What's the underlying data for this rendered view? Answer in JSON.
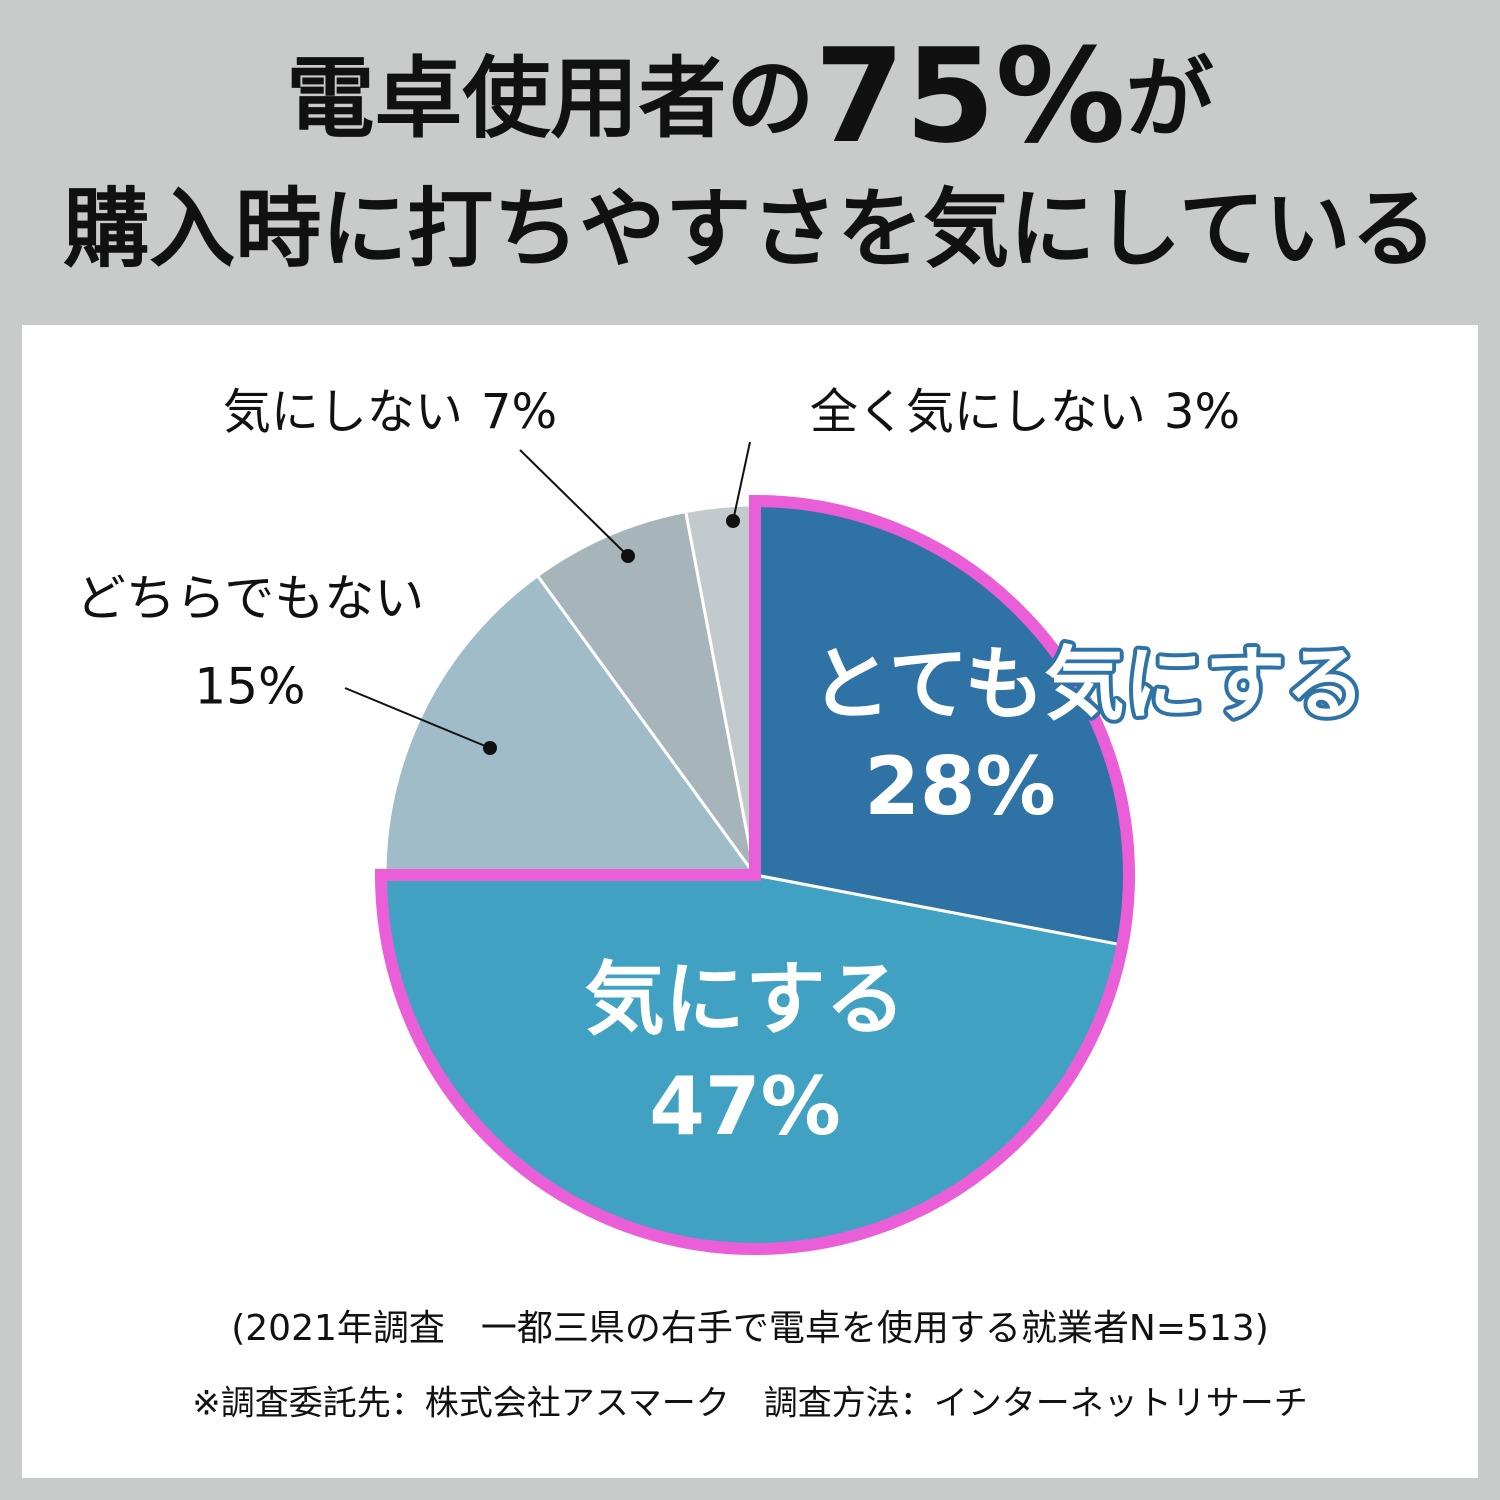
{
  "chart_data": {
    "type": "pie",
    "title": {
      "before": "電卓使用者の",
      "highlight": "75%",
      "after": "が",
      "line2": "購入時に打ちやすさを気にしている"
    },
    "categories": [
      "とても気にする",
      "気にする",
      "どちらでもない",
      "気にしない",
      "全く気にしない"
    ],
    "values": [
      28,
      47,
      15,
      7,
      3
    ],
    "value_labels": [
      "28%",
      "47%",
      "15%",
      "7%",
      "3%"
    ],
    "colors": [
      "#2f73a6",
      "#41a1c3",
      "#9fbcc8",
      "#a7b5ba",
      "#c2cacd"
    ],
    "highlight_color": "#ea5fd8",
    "notes": [
      "(2021年調査　一都三県の右手で電卓を使用する就業者N=513)",
      "※調査委託先：株式会社アスマーク　調査方法：インターネットリサーチ"
    ]
  }
}
